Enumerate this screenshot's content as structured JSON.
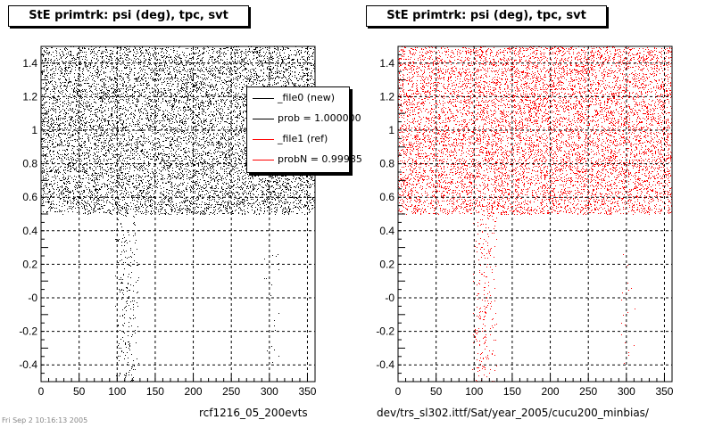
{
  "colors": {
    "new": "#000000",
    "ref": "#ff0000"
  },
  "panels": [
    {
      "title": "StE primtrk: psi (deg), tpc, svt",
      "footer": "rcf1216_05_200evts",
      "legend": [
        {
          "label": "_file0 (new)",
          "color": "#000000"
        },
        {
          "label": "prob = 1.000000",
          "color": "#000000"
        },
        {
          "label": "_file1 (ref)",
          "color": "#ff0000"
        },
        {
          "label": "probN = 0.99985",
          "color": "#ff0000"
        }
      ]
    },
    {
      "title": "StE primtrk: psi (deg), tpc, svt",
      "footer": "dev/trs_sl302.ittf/Sat/year_2005/cucu200_minbias/"
    }
  ],
  "stamp": "Fri Sep  2 10:16:13 2005",
  "chart_data": [
    {
      "type": "scatter",
      "title": "StE primtrk: psi (deg), tpc, svt",
      "xlabel": "",
      "ylabel": "",
      "xlim": [
        0,
        360
      ],
      "ylim": [
        -0.5,
        1.5
      ],
      "xticks": [
        0,
        50,
        100,
        150,
        200,
        250,
        300,
        350
      ],
      "xtick_labels": [
        "0",
        "50",
        "100",
        "150",
        "200",
        "250",
        "300",
        "350"
      ],
      "yticks": [
        -0.4,
        -0.2,
        0,
        0.2,
        0.4,
        0.6,
        0.8,
        1,
        1.2,
        1.4
      ],
      "ytick_labels": [
        "-0.4",
        "-0.2",
        "-0",
        "0.2",
        "0.4",
        "0.6",
        "0.8",
        "1",
        "1.2",
        "1.4"
      ],
      "grid": true,
      "marker_color": "#000000",
      "regions": [
        {
          "x": [
            0,
            360
          ],
          "y": [
            0.5,
            1.5
          ],
          "density": "dense"
        },
        {
          "x": [
            100,
            125
          ],
          "y": [
            -0.5,
            0.5
          ],
          "density": "sparse"
        },
        {
          "x": [
            295,
            310
          ],
          "y": [
            -0.4,
            0.3
          ],
          "density": "very sparse"
        }
      ]
    },
    {
      "type": "scatter",
      "title": "StE primtrk: psi (deg), tpc, svt",
      "xlabel": "",
      "ylabel": "",
      "xlim": [
        0,
        360
      ],
      "ylim": [
        -0.5,
        1.5
      ],
      "xticks": [
        0,
        50,
        100,
        150,
        200,
        250,
        300,
        350
      ],
      "xtick_labels": [
        "0",
        "50",
        "100",
        "150",
        "200",
        "250",
        "300",
        "350"
      ],
      "yticks": [
        -0.4,
        -0.2,
        0,
        0.2,
        0.4,
        0.6,
        0.8,
        1,
        1.2,
        1.4
      ],
      "ytick_labels": [
        "-0.4",
        "-0.2",
        "-0",
        "0.2",
        "0.4",
        "0.6",
        "0.8",
        "1",
        "1.2",
        "1.4"
      ],
      "grid": true,
      "marker_color": "#ff0000",
      "regions": [
        {
          "x": [
            0,
            360
          ],
          "y": [
            0.5,
            1.5
          ],
          "density": "dense"
        },
        {
          "x": [
            100,
            125
          ],
          "y": [
            -0.5,
            0.5
          ],
          "density": "sparse"
        },
        {
          "x": [
            295,
            310
          ],
          "y": [
            -0.4,
            0.3
          ],
          "density": "very sparse"
        }
      ]
    }
  ]
}
